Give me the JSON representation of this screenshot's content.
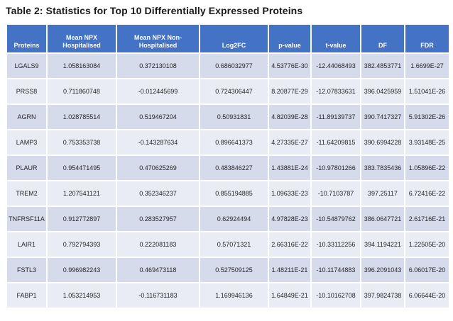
{
  "title": "Table 2: Statistics for Top 10 Differentially Expressed Proteins",
  "colors": {
    "page_bg": "#ffffff",
    "title_text": "#1a1a1a",
    "header_bg": "#4472C4",
    "header_text": "#ffffff",
    "band_dark": "#D6DBEC",
    "band_light": "#EAECF5",
    "grid": "#ffffff",
    "cell_text": "#262626"
  },
  "chart_data": {
    "type": "table",
    "title": "Table 2: Statistics for Top 10 Differentially Expressed Proteins",
    "columns": [
      "Proteins",
      "Mean NPX Hospitalised",
      "Mean NPX Non-Hospitalised",
      "Log2FC",
      "p-value",
      "t-value",
      "DF",
      "FDR"
    ],
    "column_keys": [
      "proteins",
      "mean-npx-hospitalised",
      "mean-npx-non-hospitalised",
      "log2fc",
      "p-value",
      "t-value",
      "df",
      "fdr"
    ],
    "rows": [
      [
        "LGALS9",
        "1.058163084",
        "0.372130108",
        "0.686032977",
        "4.53776E-30",
        "-12.44068493",
        "382.4853771",
        "1.6699E-27"
      ],
      [
        "PRSS8",
        "0.711860748",
        "-0.012445699",
        "0.724306447",
        "8.20877E-29",
        "-12.07833631",
        "396.0425959",
        "1.51041E-26"
      ],
      [
        "AGRN",
        "1.028785514",
        "0.519467204",
        "0.50931831",
        "4.82039E-28",
        "-11.89139737",
        "390.7417327",
        "5.91302E-26"
      ],
      [
        "LAMP3",
        "0.753353738",
        "-0.143287634",
        "0.896641373",
        "4.27335E-27",
        "-11.64209815",
        "390.6994228",
        "3.93148E-25"
      ],
      [
        "PLAUR",
        "0.954471495",
        "0.470625269",
        "0.483846227",
        "1.43881E-24",
        "-10.97801266",
        "383.7835436",
        "1.05896E-22"
      ],
      [
        "TREM2",
        "1.207541121",
        "0.352346237",
        "0.855194885",
        "1.09633E-23",
        "-10.7103787",
        "397.25117",
        "6.72416E-22"
      ],
      [
        "TNFRSF11A",
        "0.912772897",
        "0.283527957",
        "0.62924494",
        "4.97828E-23",
        "-10.54879762",
        "386.0647721",
        "2.61716E-21"
      ],
      [
        "LAIR1",
        "0.792794393",
        "0.222081183",
        "0.57071321",
        "2.66316E-22",
        "-10.33112256",
        "394.1194221",
        "1.22505E-20"
      ],
      [
        "FSTL3",
        "0.996982243",
        "0.469473118",
        "0.527509125",
        "1.48211E-21",
        "-10.11744883",
        "396.2091043",
        "6.06017E-20"
      ],
      [
        "FABP1",
        "1.053214953",
        "-0.116731183",
        "1.169946136",
        "1.64849E-21",
        "-10.10162708",
        "397.9824738",
        "6.06644E-20"
      ]
    ]
  }
}
